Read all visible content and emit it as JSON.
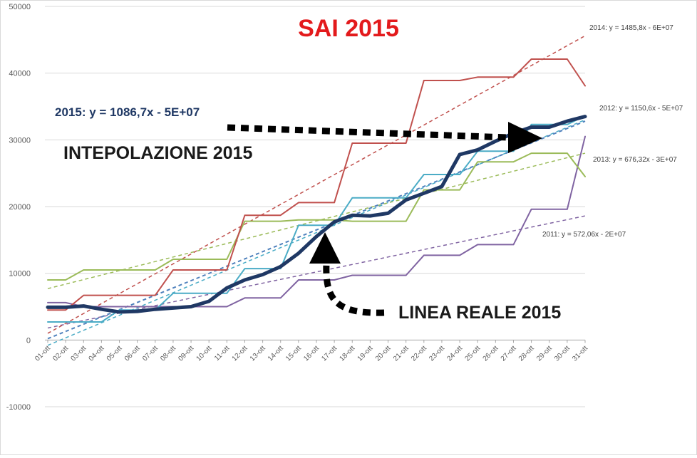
{
  "chart_data": {
    "type": "line",
    "title": "SAI 2015",
    "ylim": [
      -10000,
      50000
    ],
    "yticks": [
      "-10000",
      "0",
      "10000",
      "20000",
      "30000",
      "40000",
      "50000"
    ],
    "categories": [
      "01-ott",
      "02-ott",
      "03-ott",
      "04-ott",
      "05-ott",
      "06-ott",
      "07-ott",
      "08-ott",
      "09-ott",
      "10-ott",
      "11-ott",
      "12-ott",
      "13-ott",
      "14-ott",
      "15-ott",
      "16-ott",
      "17-ott",
      "18-ott",
      "19-ott",
      "20-ott",
      "21-ott",
      "22-ott",
      "23-ott",
      "24-ott",
      "25-ott",
      "26-ott",
      "27-ott",
      "28-ott",
      "29-ott",
      "30-ott",
      "31-ott"
    ],
    "series": [
      {
        "key": "2011",
        "color": "#8064a2",
        "width": 2,
        "values": [
          5600,
          5600,
          5000,
          5000,
          5000,
          5000,
          5000,
          5000,
          5000,
          5000,
          5000,
          6300,
          6300,
          6300,
          9000,
          9000,
          9000,
          9700,
          9700,
          9700,
          9700,
          12700,
          12700,
          12700,
          14300,
          14300,
          14300,
          19600,
          19600,
          19600,
          30500
        ]
      },
      {
        "key": "2012",
        "color": "#4bacc6",
        "width": 2,
        "values": [
          2700,
          2700,
          2700,
          2700,
          4500,
          4500,
          4500,
          7000,
          7000,
          7000,
          7000,
          10700,
          10700,
          10700,
          17200,
          17200,
          17200,
          21300,
          21300,
          21300,
          21300,
          24800,
          24800,
          24800,
          28300,
          28300,
          28300,
          32300,
          32300,
          32300,
          33600
        ]
      },
      {
        "key": "2013",
        "color": "#9bbb59",
        "width": 2,
        "values": [
          9000,
          9000,
          10500,
          10500,
          10500,
          10500,
          10500,
          12100,
          12100,
          12100,
          12100,
          17800,
          17800,
          17800,
          18000,
          18000,
          18000,
          17800,
          17800,
          17800,
          17800,
          22500,
          22500,
          22500,
          26700,
          26700,
          26700,
          28000,
          28000,
          28000,
          24500
        ]
      },
      {
        "key": "2014",
        "color": "#c0504d",
        "width": 2,
        "values": [
          4500,
          4500,
          6700,
          6700,
          6700,
          6700,
          6700,
          10500,
          10500,
          10500,
          10500,
          18700,
          18700,
          18700,
          20600,
          20600,
          20600,
          29500,
          29500,
          29500,
          29500,
          38900,
          38900,
          38900,
          39400,
          39400,
          39400,
          42100,
          42100,
          42100,
          38100
        ]
      },
      {
        "key": "2015",
        "color": "#1f3864",
        "width": 5,
        "values": [
          4900,
          4900,
          5100,
          4600,
          4200,
          4300,
          4600,
          4800,
          5000,
          5800,
          7800,
          9000,
          9800,
          11000,
          13000,
          15500,
          17700,
          18700,
          18600,
          19000,
          21000,
          22000,
          23000,
          27800,
          28500,
          29800,
          31000,
          31900,
          31900,
          32800,
          33500
        ]
      }
    ],
    "trendlines": [
      {
        "key": "2011",
        "color": "#8064a2",
        "start": 1800,
        "end": 18600,
        "label": "2011: y = 572,06x - 2E+07"
      },
      {
        "key": "2012",
        "color": "#4bacc6",
        "start": -800,
        "end": 33000,
        "label": "2012: y = 1150,6x - 5E+07"
      },
      {
        "key": "2013",
        "color": "#9bbb59",
        "start": 7700,
        "end": 28000,
        "label": "2013: y = 676,32x - 3E+07"
      },
      {
        "key": "2014",
        "color": "#c0504d",
        "start": 1000,
        "end": 45600,
        "label": "2014: y = 1485,8x - 6E+07"
      },
      {
        "key": "2015",
        "color": "#4f81bd",
        "start": 200,
        "end": 32800,
        "label": ""
      }
    ],
    "annotations": {
      "eq_2015": "2015: y = 1086,7x - 5E+07",
      "interpolation": "INTEPOLAZIONE 2015",
      "real_line": "LINEA REALE 2015"
    }
  }
}
